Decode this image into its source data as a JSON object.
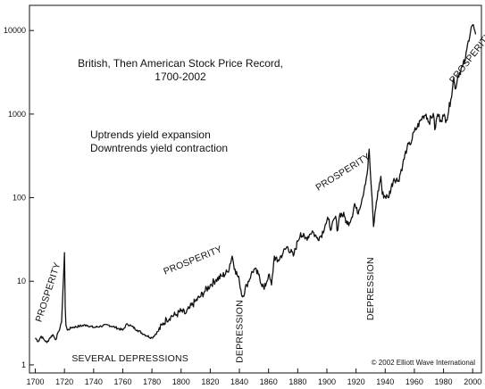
{
  "chart_data": {
    "type": "line",
    "title": "British, Then American Stock Price Record,",
    "subtitle": "1700-2002",
    "notes": [
      "Uptrends yield expansion",
      "Downtrends yield contraction"
    ],
    "copyright": "© 2002 Elliott Wave International",
    "xlabel": "",
    "ylabel": "",
    "xlim": [
      1696,
      2006
    ],
    "ylim": [
      0.8,
      20000
    ],
    "yscale": "log",
    "grid": false,
    "x_ticks": [
      1700,
      1720,
      1740,
      1760,
      1780,
      1800,
      1820,
      1840,
      1860,
      1880,
      1900,
      1920,
      1940,
      1960,
      1980,
      2000
    ],
    "y_ticks": [
      {
        "value": 1,
        "label": "1"
      },
      {
        "value": 10,
        "label": "10"
      },
      {
        "value": 100,
        "label": "100"
      },
      {
        "value": 1000,
        "label": "1000"
      },
      {
        "value": 10000,
        "label": "10000"
      }
    ],
    "annotations": [
      {
        "text": "PROSPERITY",
        "x": 1704,
        "y": 3.2,
        "rotate": -72
      },
      {
        "text": "SEVERAL DEPRESSIONS",
        "x": 1725,
        "y": 1.1,
        "rotate": 0
      },
      {
        "text": "PROSPERITY",
        "x": 1789,
        "y": 12,
        "rotate": -22
      },
      {
        "text": "DEPRESSION",
        "x": 1842,
        "y": 1.05,
        "rotate": -90
      },
      {
        "text": "PROSPERITY",
        "x": 1894,
        "y": 120,
        "rotate": -32
      },
      {
        "text": "DEPRESSION",
        "x": 1932,
        "y": 3.4,
        "rotate": -90
      },
      {
        "text": "PROSPERITY",
        "x": 1987,
        "y": 2300,
        "rotate": -52
      }
    ],
    "series": [
      {
        "values": [
          [
            1700,
            2.1
          ],
          [
            1702,
            1.9
          ],
          [
            1704,
            2.2
          ],
          [
            1706,
            2.0
          ],
          [
            1708,
            1.85
          ],
          [
            1710,
            2.1
          ],
          [
            1712,
            2.3
          ],
          [
            1714,
            2.0
          ],
          [
            1716,
            2.5
          ],
          [
            1718,
            3.2
          ],
          [
            1719,
            8
          ],
          [
            1720,
            22
          ],
          [
            1720.5,
            5
          ],
          [
            1721,
            3.0
          ],
          [
            1722,
            2.6
          ],
          [
            1725,
            2.8
          ],
          [
            1730,
            2.9
          ],
          [
            1735,
            3.0
          ],
          [
            1740,
            2.8
          ],
          [
            1745,
            2.9
          ],
          [
            1750,
            3.0
          ],
          [
            1755,
            2.8
          ],
          [
            1760,
            2.6
          ],
          [
            1763,
            3.1
          ],
          [
            1766,
            2.9
          ],
          [
            1770,
            2.6
          ],
          [
            1775,
            2.3
          ],
          [
            1780,
            2.1
          ],
          [
            1784,
            2.5
          ],
          [
            1787,
            3.0
          ],
          [
            1790,
            3.5
          ],
          [
            1793,
            3.8
          ],
          [
            1797,
            4.0
          ],
          [
            1800,
            4.4
          ],
          [
            1803,
            4.1
          ],
          [
            1806,
            4.8
          ],
          [
            1810,
            5.8
          ],
          [
            1813,
            6.5
          ],
          [
            1816,
            7.5
          ],
          [
            1820,
            9
          ],
          [
            1824,
            10.5
          ],
          [
            1828,
            11.5
          ],
          [
            1832,
            13
          ],
          [
            1835,
            20
          ],
          [
            1837,
            14
          ],
          [
            1840,
            10
          ],
          [
            1842,
            6.5
          ],
          [
            1845,
            9
          ],
          [
            1848,
            12
          ],
          [
            1850,
            14
          ],
          [
            1853,
            12
          ],
          [
            1857,
            8
          ],
          [
            1860,
            12
          ],
          [
            1862,
            9
          ],
          [
            1864,
            20
          ],
          [
            1866,
            17
          ],
          [
            1870,
            22
          ],
          [
            1873,
            26
          ],
          [
            1877,
            20
          ],
          [
            1880,
            30
          ],
          [
            1882,
            38
          ],
          [
            1885,
            32
          ],
          [
            1888,
            36
          ],
          [
            1890,
            40
          ],
          [
            1893,
            33
          ],
          [
            1896,
            35
          ],
          [
            1899,
            48
          ],
          [
            1901,
            55
          ],
          [
            1903,
            42
          ],
          [
            1906,
            60
          ],
          [
            1907,
            40
          ],
          [
            1909,
            65
          ],
          [
            1912,
            60
          ],
          [
            1914,
            48
          ],
          [
            1917,
            58
          ],
          [
            1919,
            85
          ],
          [
            1921,
            65
          ],
          [
            1924,
            95
          ],
          [
            1926,
            140
          ],
          [
            1928,
            220
          ],
          [
            1929,
            380
          ],
          [
            1930,
            180
          ],
          [
            1932,
            45
          ],
          [
            1934,
            90
          ],
          [
            1937,
            180
          ],
          [
            1938,
            110
          ],
          [
            1942,
            100
          ],
          [
            1946,
            170
          ],
          [
            1949,
            160
          ],
          [
            1952,
            250
          ],
          [
            1955,
            400
          ],
          [
            1957,
            430
          ],
          [
            1960,
            620
          ],
          [
            1962,
            700
          ],
          [
            1966,
            950
          ],
          [
            1968,
            1000
          ],
          [
            1970,
            800
          ],
          [
            1973,
            1020
          ],
          [
            1974,
            650
          ],
          [
            1976,
            1000
          ],
          [
            1978,
            850
          ],
          [
            1980,
            950
          ],
          [
            1982,
            850
          ],
          [
            1985,
            1500
          ],
          [
            1987,
            2700
          ],
          [
            1988,
            2000
          ],
          [
            1990,
            2900
          ],
          [
            1993,
            3700
          ],
          [
            1995,
            4500
          ],
          [
            1997,
            7500
          ],
          [
            1999,
            11000
          ],
          [
            2000,
            11700
          ],
          [
            2001,
            10500
          ],
          [
            2002,
            9000
          ]
        ]
      }
    ]
  }
}
